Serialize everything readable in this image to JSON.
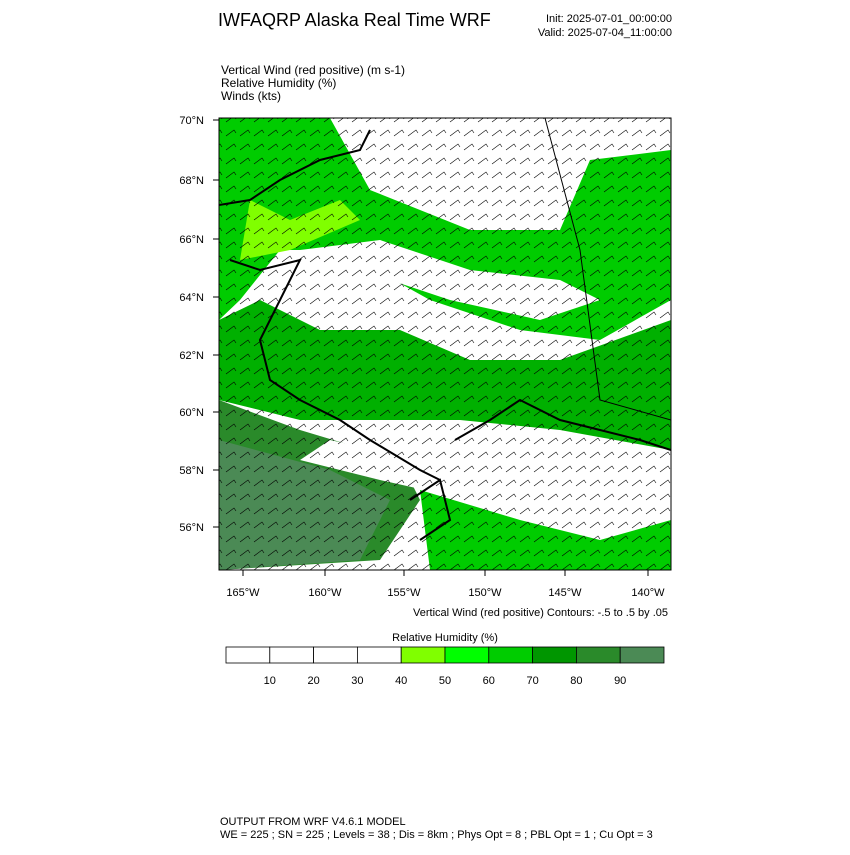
{
  "header": {
    "title": "IWFAQRP Alaska Real Time WRF",
    "init": "Init: 2025-07-01_00:00:00",
    "valid": "Valid: 2025-07-04_11:00:00"
  },
  "fields": [
    "Vertical Wind (red positive)   (m s-1)",
    "Relative Humidity   (%)",
    "Winds   (kts)"
  ],
  "map": {
    "lat_labels": [
      "70°N",
      "68°N",
      "66°N",
      "64°N",
      "62°N",
      "60°N",
      "58°N",
      "56°N"
    ],
    "lon_labels": [
      "165°W",
      "160°W",
      "155°W",
      "150°W",
      "145°W",
      "140°W"
    ],
    "contour_note": "Vertical Wind (red positive) Contours: -.5 to .5 by .05"
  },
  "colorbar": {
    "title": "Relative Humidity  (%)",
    "colors": [
      "#ffffff",
      "#ffffff",
      "#ffffff",
      "#ffffff",
      "#80ff00",
      "#00ff00",
      "#00cc00",
      "#009600",
      "#2a8a2a",
      "#4b8a55"
    ],
    "ticks": [
      10,
      20,
      30,
      40,
      50,
      60,
      70,
      80,
      90
    ]
  },
  "footer": [
    "OUTPUT FROM WRF V4.6.1 MODEL",
    "WE = 225 ; SN = 225 ; Levels = 38 ; Dis = 8km ; Phys Opt = 8 ; PBL Opt = 1 ; Cu Opt = 3"
  ]
}
